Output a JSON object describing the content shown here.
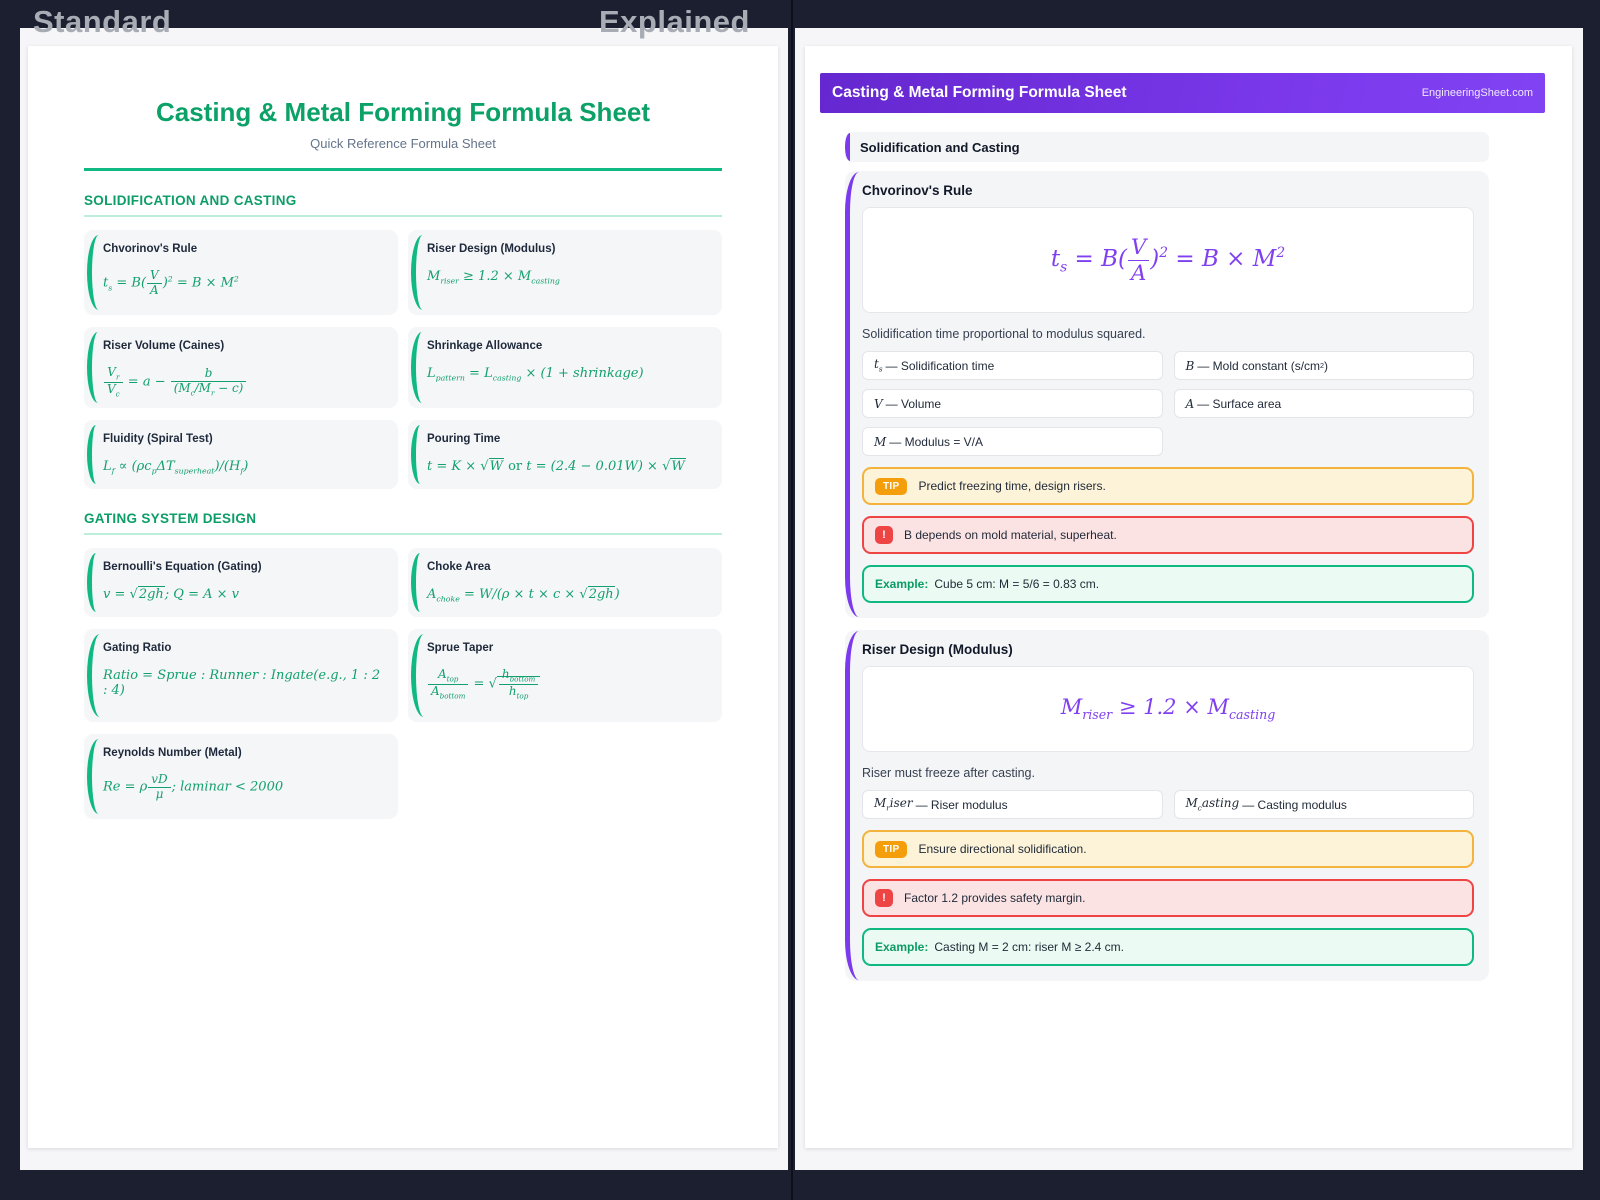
{
  "labels": {
    "left": "Standard",
    "right": "Explained"
  },
  "colors": {
    "canvas_navy": "#1c1f30",
    "accent_green": "#10b981",
    "title_green": "#0ba167",
    "accent_purple": "#7c3aed",
    "formula_purple": "#8040f0",
    "tip_border": "#f3b33c",
    "tip_badge": "#f59e0b",
    "warning_border": "#ef4444",
    "example_border": "#10b981",
    "card_gray": "#f4f5f7"
  },
  "standard": {
    "title": "Casting & Metal Forming Formula Sheet",
    "subtitle": "Quick Reference Formula Sheet",
    "sections": [
      {
        "heading": "SOLIDIFICATION AND CASTING",
        "cards": [
          {
            "name": "Chvorinov's Rule",
            "formula_html": "t<sub>s</sub> = B(<span class='fr'><span class='tp'>V</span><span class='bt'>A</span></span>)<sup>2</sup> = B × M<sup>2</sup>"
          },
          {
            "name": "Riser Design (Modulus)",
            "formula_html": "M<sub>riser</sub> ≥ 1.2 × M<sub>casting</sub>"
          },
          {
            "name": "Riser Volume (Caines)",
            "formula_html": "<span class='fr'><span class='tp'>V<sub>r</sub></span><span class='bt'>V<sub>c</sub></span></span> = a − <span class='fr'><span class='tp'>b</span><span class='bt'>(M<sub>c</sub>/M<sub>r</sub> − c)</span></span>"
          },
          {
            "name": "Shrinkage Allowance",
            "formula_html": "L<sub>pattern</sub> = L<sub>casting</sub> × (1 + shrinkage)"
          },
          {
            "name": "Fluidity (Spiral Test)",
            "formula_html": "L<sub>f</sub> ∝ (ρc<sub>p</sub>ΔT<sub>superheat</sub>)/(H<sub>f</sub>)"
          },
          {
            "name": "Pouring Time",
            "formula_html": "t = K × <span class='sq'>√<span class='rd'>W</span></span> <span class='rm'>or</span> t = (2.4 − 0.01W) × <span class='sq'>√<span class='rd'>W</span></span>"
          }
        ]
      },
      {
        "heading": "GATING SYSTEM DESIGN",
        "cards": [
          {
            "name": "Bernoulli's Equation (Gating)",
            "formula_html": "v = <span class='sq'>√<span class='rd'>2gh</span></span>; Q = A × v"
          },
          {
            "name": "Choke Area",
            "formula_html": "A<sub>choke</sub> = W/(ρ × t × c × <span class='sq'>√<span class='rd'>2gh</span></span>)"
          },
          {
            "name": "Gating Ratio",
            "formula_html": "Ratio = Sprue : Runner : Ingate(e.g., 1 : 2 : 4)"
          },
          {
            "name": "Sprue Taper",
            "formula_html": "<span class='fr'><span class='tp'>A<sub>top</sub></span><span class='bt'>A<sub>bottom</sub></span></span> = <span class='sq'>√<span class='rd'><span class='fr'><span class='tp'>h<sub>bottom</sub></span><span class='bt'>h<sub>top</sub></span></span></span></span>"
          },
          {
            "name": "Reynolds Number (Metal)",
            "formula_html": "Re = ρ<span class='fr'><span class='tp'>vD</span><span class='bt'>μ</span></span>; laminar &lt; 2000"
          }
        ]
      }
    ]
  },
  "explained": {
    "header": {
      "title": "Casting & Metal Forming Formula Sheet",
      "site": "EngineeringSheet.com"
    },
    "section_heading": "Solidification and Casting",
    "cards": [
      {
        "title": "Chvorinov's Rule",
        "formula_html": "t<sub>s</sub> = B(<span class='fr'><span class='tp'>V</span><span class='bt'>A</span></span>)<sup>2</sup> = B × M<sup>2</sup>",
        "description": "Solidification time proportional to modulus squared.",
        "variables": [
          "<i>t<sub>s</sub></i> — Solidification time",
          "<i>B</i> — Mold constant (s/cm<sup>2</sup>)",
          "<i>V</i> — Volume",
          "<i>A</i> — Surface area",
          "<i>M</i> — Modulus = V/A"
        ],
        "tip_badge": "TIP",
        "tip": "Predict freezing time, design risers.",
        "warning_badge": "!",
        "warning": "B depends on mold material, superheat.",
        "example_label": "Example:",
        "example": "Cube 5 cm: M = 5/6 = 0.83 cm."
      },
      {
        "title": "Riser Design (Modulus)",
        "formula_html": "M<sub>riser</sub> ≥ 1.2 × M<sub>casting</sub>",
        "description": "Riser must freeze after casting.",
        "variables": [
          "<i>M<sub>r</sub>iser</i> — Riser modulus",
          "<i>M<sub>c</sub>asting</i> — Casting modulus"
        ],
        "tip_badge": "TIP",
        "tip": "Ensure directional solidification.",
        "warning_badge": "!",
        "warning": "Factor 1.2 provides safety margin.",
        "example_label": "Example:",
        "example": "Casting M = 2 cm: riser M ≥ 2.4 cm."
      }
    ]
  }
}
